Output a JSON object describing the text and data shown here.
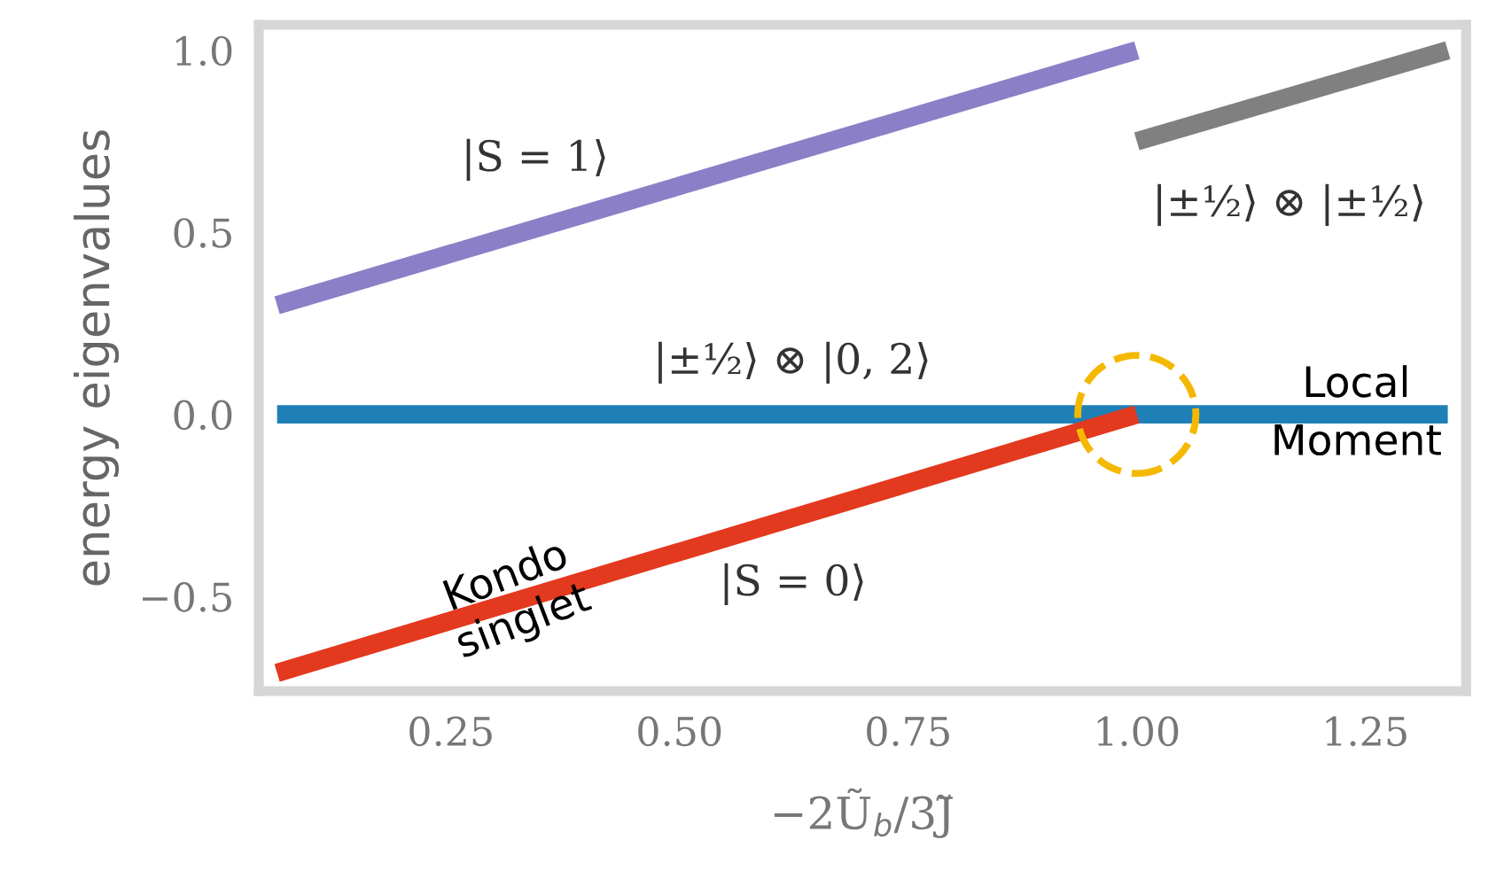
{
  "chart_data": {
    "type": "line",
    "xlabel": "−2Ũ$_{b}$/3J̃",
    "ylabel": "energy eigenvalues",
    "series": [
      {
        "name": "|S = 1⟩",
        "color": "#8b7fc7",
        "x": [
          0.06,
          1.0
        ],
        "values": [
          0.3,
          1.0
        ]
      },
      {
        "name": "|±½⟩ ⊗ |±½⟩",
        "color": "#808080",
        "x": [
          1.0,
          1.34
        ],
        "values": [
          0.75,
          1.0
        ]
      },
      {
        "name": "|±½⟩ ⊗ |0, 2⟩",
        "color": "#1f80b8",
        "x": [
          0.06,
          1.34
        ],
        "values": [
          0,
          0
        ]
      },
      {
        "name": "|S = 0⟩",
        "color": "#e2391f",
        "x": [
          0.06,
          1.0
        ],
        "values": [
          -0.71,
          0
        ]
      },
      {
        "type": "scatter",
        "color": "#f5b800",
        "x": [
          1.0
        ],
        "values": [
          0
        ],
        "marker": "circle",
        "line_style": "dashed"
      }
    ],
    "annotations": [
      {
        "text": "Kondo\nsinglet",
        "x": 0.32,
        "y": -0.51
      },
      {
        "text": "Local\nMoment",
        "x": 1.24,
        "y": 0
      }
    ],
    "xlim": [
      0.04,
      1.36
    ],
    "ylim": [
      -0.76,
      1.07
    ],
    "xticks": [
      {
        "value": 0.25,
        "label": "0.25"
      },
      {
        "value": 0.5,
        "label": "0.50"
      },
      {
        "value": 0.75,
        "label": "0.75"
      },
      {
        "value": 1.0,
        "label": "1.00"
      },
      {
        "value": 1.25,
        "label": "1.25"
      }
    ],
    "yticks": [
      {
        "value": -0.5,
        "label": "−0.5"
      },
      {
        "value": 0,
        "label": "0.0"
      },
      {
        "value": 0.5,
        "label": "0.5"
      },
      {
        "value": 1,
        "label": "1.0"
      }
    ]
  }
}
